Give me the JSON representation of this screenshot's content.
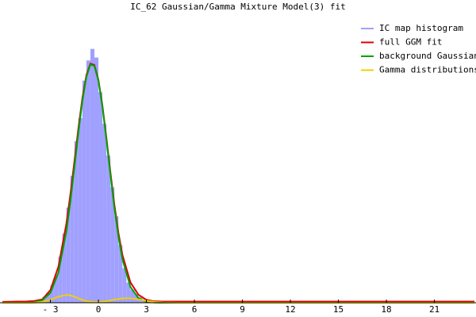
{
  "chart_data": {
    "type": "histogram",
    "title": "IC_62 Gaussian/Gamma Mixture Model(3) fit",
    "xlim": [
      -6.15,
      23.6
    ],
    "ylim": [
      0,
      1
    ],
    "xticks": [
      {
        "value": -3,
        "label": "- 3"
      },
      0,
      3,
      6,
      9,
      12,
      15,
      18,
      21
    ],
    "legend": "top-right",
    "histogram": {
      "name": "IC map histogram",
      "color": "#a0a0ff",
      "bins": [
        -5,
        -4.75,
        -4.5,
        -4.25,
        -4,
        -3.75,
        -3.5,
        -3.25,
        -3,
        -2.75,
        -2.5,
        -2.25,
        -2,
        -1.75,
        -1.5,
        -1.25,
        -1,
        -0.75,
        -0.5,
        -0.25,
        0,
        0.25,
        0.5,
        0.75,
        1,
        1.25,
        1.5,
        1.75,
        2,
        2.25,
        2.5,
        2.75,
        3,
        3.25,
        3.5,
        3.75,
        4
      ],
      "counts": [
        0.002,
        0.003,
        0.005,
        0.006,
        0.008,
        0.012,
        0.02,
        0.035,
        0.06,
        0.095,
        0.16,
        0.24,
        0.33,
        0.44,
        0.56,
        0.64,
        0.77,
        0.84,
        0.88,
        0.85,
        0.73,
        0.62,
        0.51,
        0.4,
        0.3,
        0.2,
        0.12,
        0.07,
        0.045,
        0.03,
        0.02,
        0.012,
        0.008,
        0.006,
        0.004,
        0.003
      ]
    },
    "x": [
      -6,
      -5,
      -4.5,
      -4,
      -3.5,
      -3,
      -2.5,
      -2,
      -1.75,
      -1.5,
      -1.25,
      -1,
      -0.75,
      -0.5,
      -0.25,
      0,
      0.25,
      0.5,
      0.75,
      1,
      1.25,
      1.5,
      2,
      2.5,
      3,
      3.5,
      4,
      5,
      6,
      10,
      15,
      20,
      23.5
    ],
    "series": [
      {
        "name": "full GGM fit",
        "color": "#e00000",
        "values": [
          0.003,
          0.004,
          0.0044,
          0.0063,
          0.0118,
          0.0439,
          0.125,
          0.275,
          0.376,
          0.49,
          0.605,
          0.71,
          0.789,
          0.829,
          0.824,
          0.773,
          0.684,
          0.572,
          0.453,
          0.34,
          0.243,
          0.166,
          0.071,
          0.028,
          0.01,
          0.005,
          0.004,
          0.004,
          0.004,
          0.004,
          0.004,
          0.004,
          0.004
        ]
      },
      {
        "name": "background Gaussian",
        "color": "#00a000",
        "values": [
          0,
          0,
          0.0003,
          0.0018,
          0.009,
          0.034,
          0.104,
          0.248,
          0.351,
          0.469,
          0.59,
          0.7,
          0.783,
          0.826,
          0.821,
          0.77,
          0.68,
          0.566,
          0.445,
          0.329,
          0.23,
          0.151,
          0.055,
          0.016,
          0.0036,
          0.0006,
          0,
          0,
          0,
          0,
          0,
          0,
          0
        ]
      },
      {
        "name": "Gamma distributions",
        "color": "#f0d000",
        "values": [
          0,
          0,
          0.0001,
          0.0005,
          0.0028,
          0.0099,
          0.021,
          0.027,
          0.0254,
          0.021,
          0.0154,
          0.0099,
          0.0057,
          0.0034,
          0.0025,
          0.0026,
          0.0036,
          0.0056,
          0.008,
          0.0107,
          0.0132,
          0.0151,
          0.0156,
          0.0118,
          0.0065,
          0.0026,
          0.0008,
          0,
          0,
          0,
          0,
          0,
          0
        ]
      }
    ]
  }
}
